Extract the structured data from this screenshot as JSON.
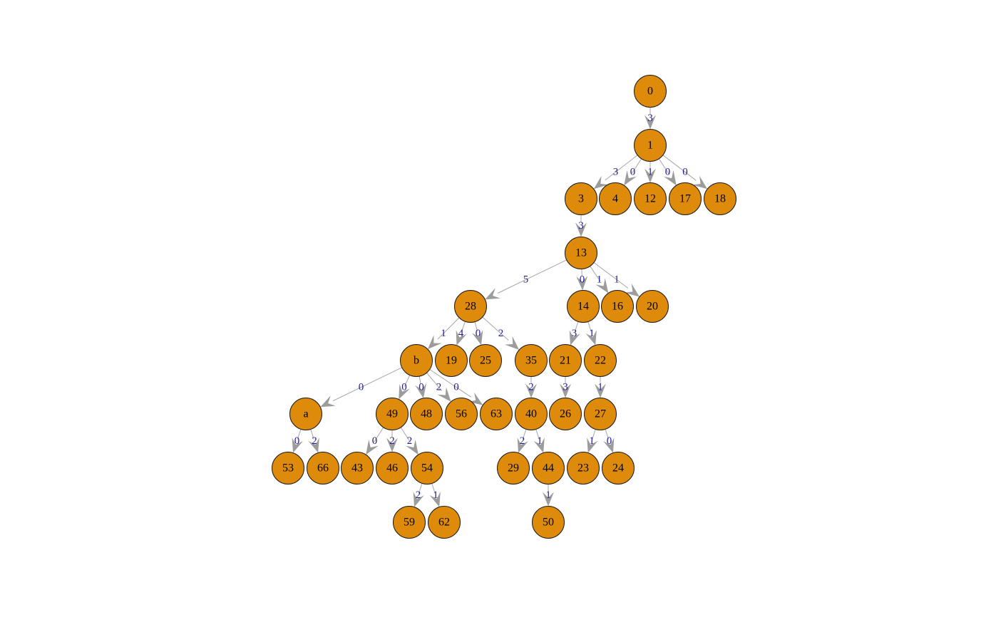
{
  "diagram": {
    "type": "directed-tree",
    "node_color": "#de8a0a",
    "edge_color": "#a6a6a6",
    "edge_label_color": "#1f1f8f",
    "nodes": [
      "0",
      "1",
      "3",
      "4",
      "12",
      "17",
      "18",
      "13",
      "28",
      "14",
      "16",
      "20",
      "b",
      "19",
      "25",
      "35",
      "21",
      "22",
      "a",
      "49",
      "48",
      "56",
      "63",
      "40",
      "26",
      "27",
      "53",
      "66",
      "43",
      "46",
      "54",
      "29",
      "44",
      "23",
      "24",
      "59",
      "62",
      "50"
    ],
    "edges": [
      {
        "from": "0",
        "to": "1",
        "label": "3"
      },
      {
        "from": "1",
        "to": "3",
        "label": "3"
      },
      {
        "from": "1",
        "to": "4",
        "label": "0"
      },
      {
        "from": "1",
        "to": "12",
        "label": "1"
      },
      {
        "from": "1",
        "to": "17",
        "label": "0"
      },
      {
        "from": "1",
        "to": "18",
        "label": "0"
      },
      {
        "from": "3",
        "to": "13",
        "label": "3"
      },
      {
        "from": "13",
        "to": "28",
        "label": "5"
      },
      {
        "from": "13",
        "to": "14",
        "label": "0"
      },
      {
        "from": "13",
        "to": "16",
        "label": "1"
      },
      {
        "from": "13",
        "to": "20",
        "label": "1"
      },
      {
        "from": "28",
        "to": "b",
        "label": "1"
      },
      {
        "from": "28",
        "to": "19",
        "label": "4"
      },
      {
        "from": "28",
        "to": "25",
        "label": "0"
      },
      {
        "from": "28",
        "to": "35",
        "label": "2"
      },
      {
        "from": "14",
        "to": "21",
        "label": "3"
      },
      {
        "from": "14",
        "to": "22",
        "label": "1"
      },
      {
        "from": "b",
        "to": "a",
        "label": "0"
      },
      {
        "from": "b",
        "to": "49",
        "label": "0"
      },
      {
        "from": "b",
        "to": "48",
        "label": "0"
      },
      {
        "from": "b",
        "to": "56",
        "label": "2"
      },
      {
        "from": "b",
        "to": "63",
        "label": "0"
      },
      {
        "from": "35",
        "to": "40",
        "label": "2"
      },
      {
        "from": "21",
        "to": "26",
        "label": "3"
      },
      {
        "from": "22",
        "to": "27",
        "label": "1"
      },
      {
        "from": "a",
        "to": "53",
        "label": "0"
      },
      {
        "from": "a",
        "to": "66",
        "label": "2"
      },
      {
        "from": "49",
        "to": "43",
        "label": "0"
      },
      {
        "from": "49",
        "to": "46",
        "label": "2"
      },
      {
        "from": "49",
        "to": "54",
        "label": "2"
      },
      {
        "from": "40",
        "to": "29",
        "label": "2"
      },
      {
        "from": "40",
        "to": "44",
        "label": "1"
      },
      {
        "from": "27",
        "to": "23",
        "label": "1"
      },
      {
        "from": "27",
        "to": "24",
        "label": "0"
      },
      {
        "from": "54",
        "to": "59",
        "label": "2"
      },
      {
        "from": "54",
        "to": "62",
        "label": "1"
      },
      {
        "from": "44",
        "to": "50",
        "label": "1"
      }
    ]
  }
}
